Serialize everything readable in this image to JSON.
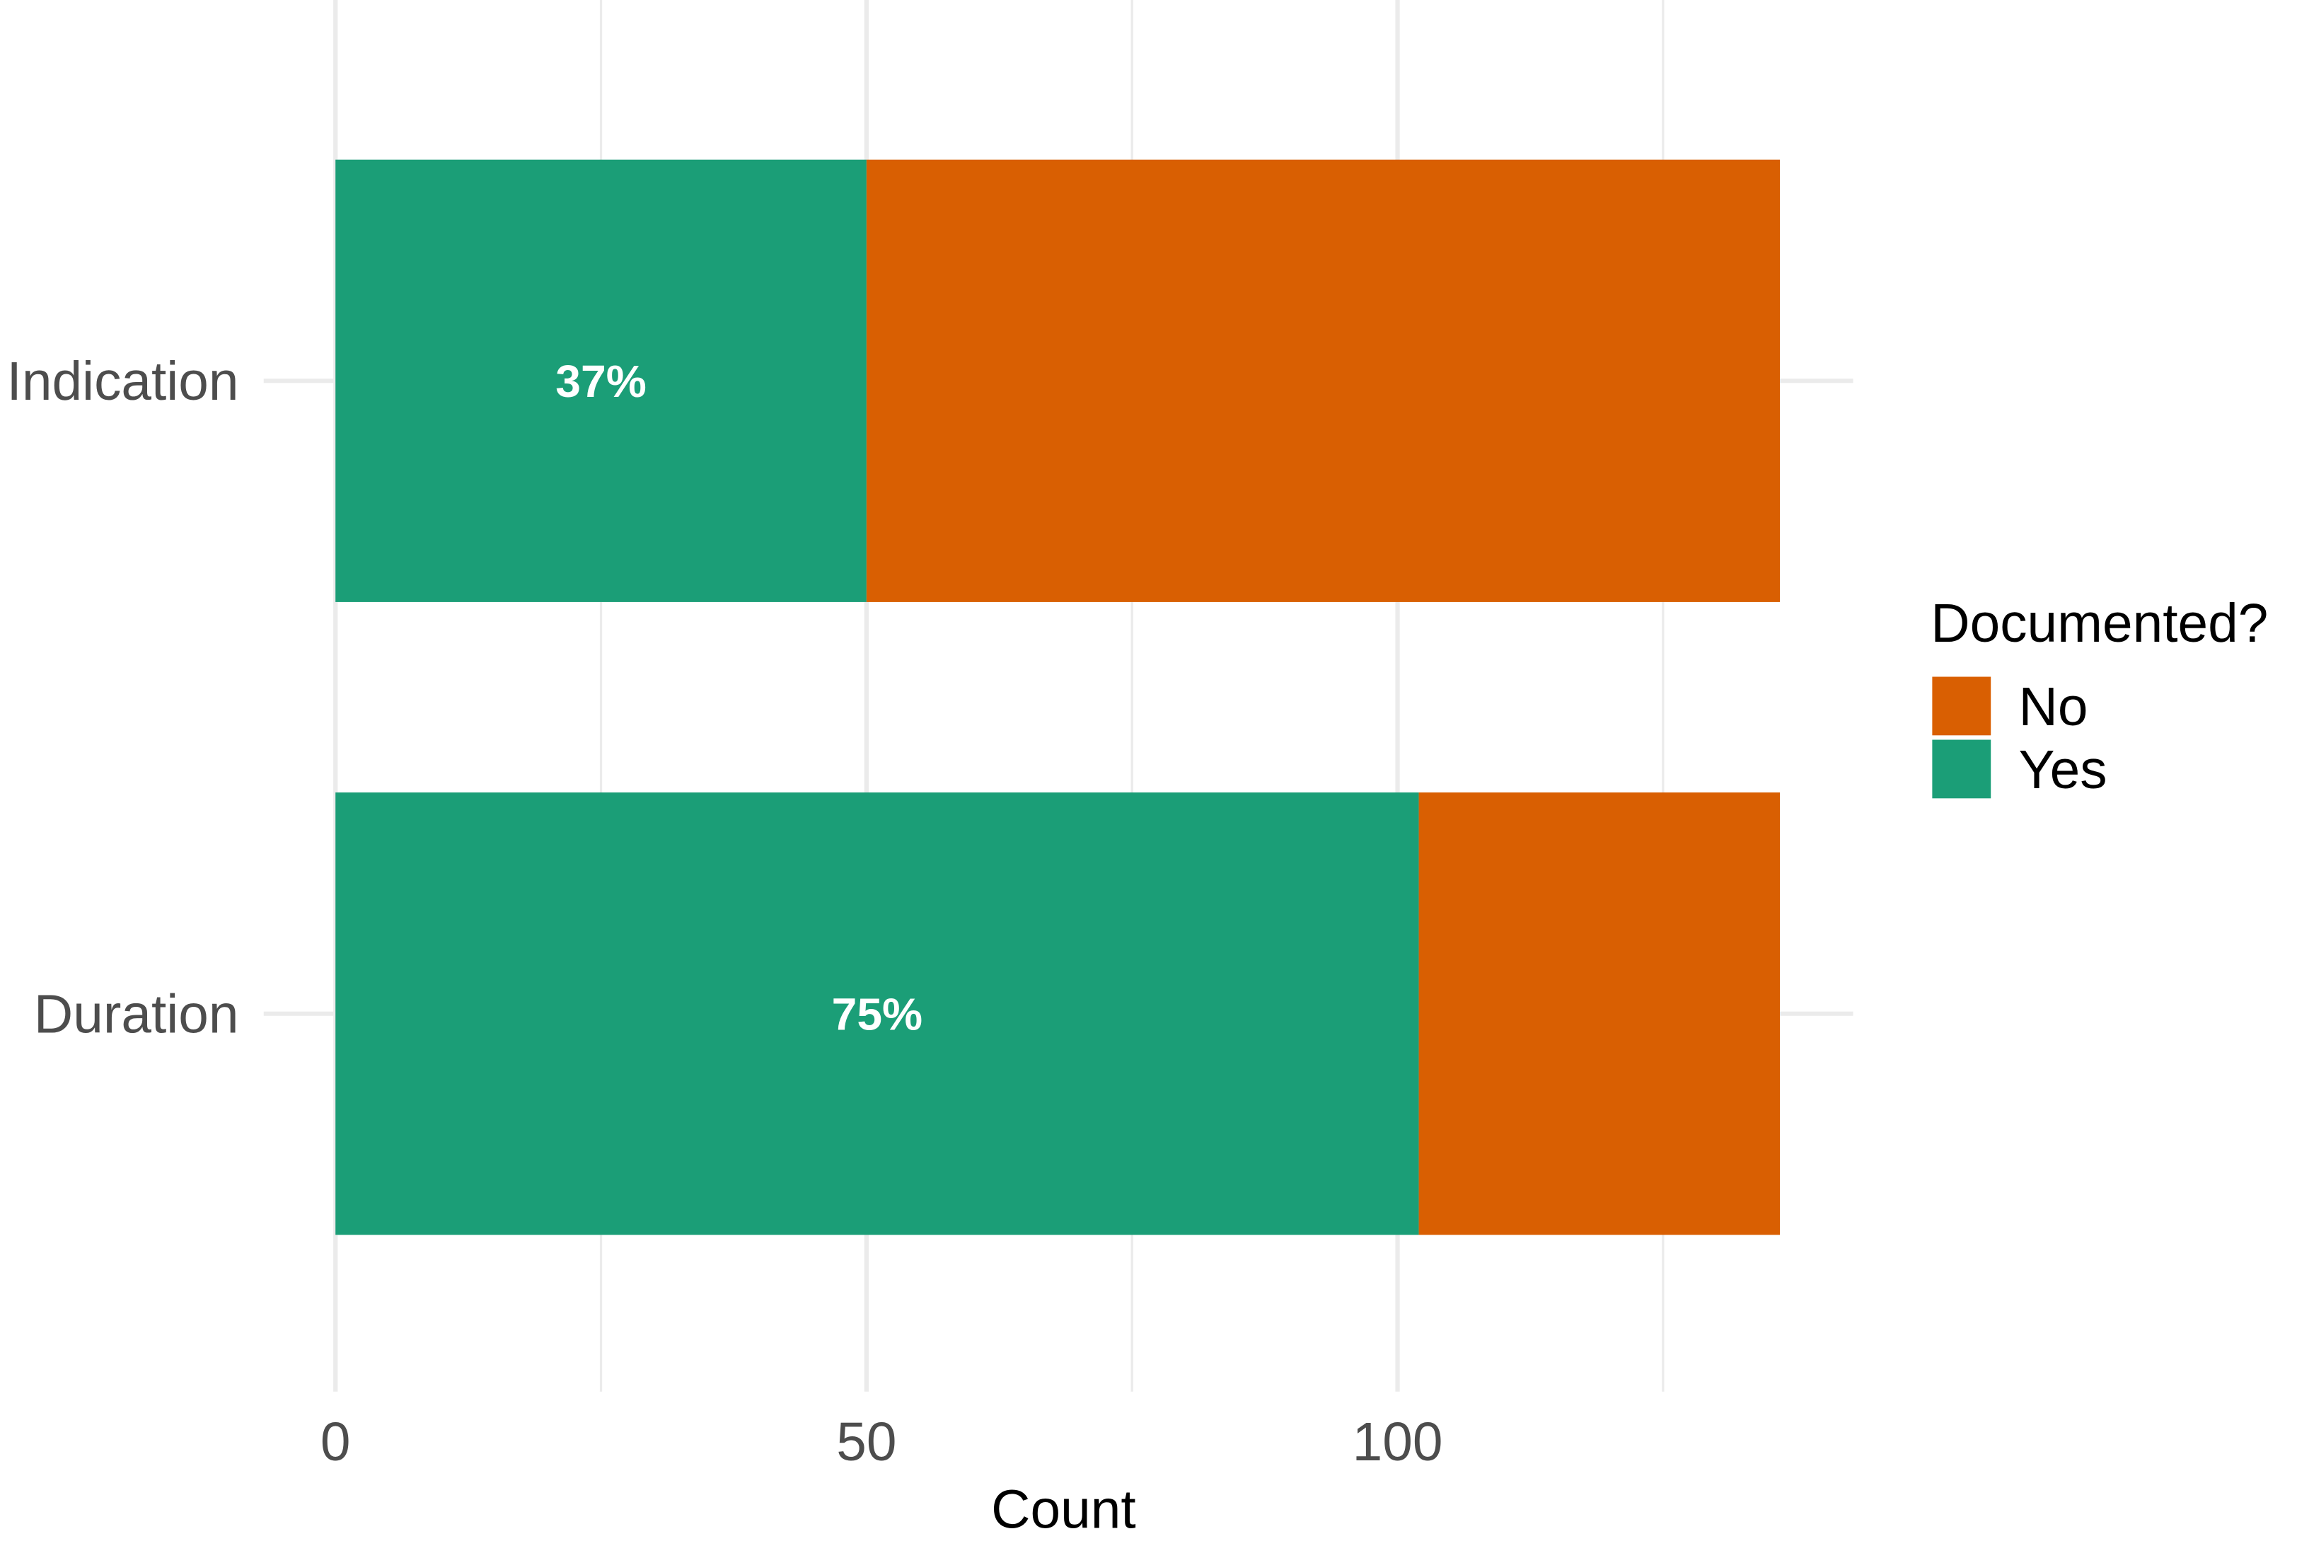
{
  "chart_data": {
    "type": "bar",
    "orientation": "horizontal",
    "stacked": true,
    "categories": [
      "Indication",
      "Duration"
    ],
    "series": [
      {
        "name": "No",
        "values": [
          86,
          34
        ],
        "color": "#D95F02"
      },
      {
        "name": "Yes",
        "values": [
          50,
          102
        ],
        "color": "#1B9E77"
      }
    ],
    "data_labels": [
      "37%",
      "75%"
    ],
    "xlabel": "Count",
    "ylabel": "",
    "xlim": [
      0,
      136
    ],
    "x_ticks": [
      0,
      50,
      100
    ],
    "grid": true,
    "legend": {
      "title": "Documented?",
      "placement": "right",
      "entries": [
        "No",
        "Yes"
      ]
    }
  }
}
